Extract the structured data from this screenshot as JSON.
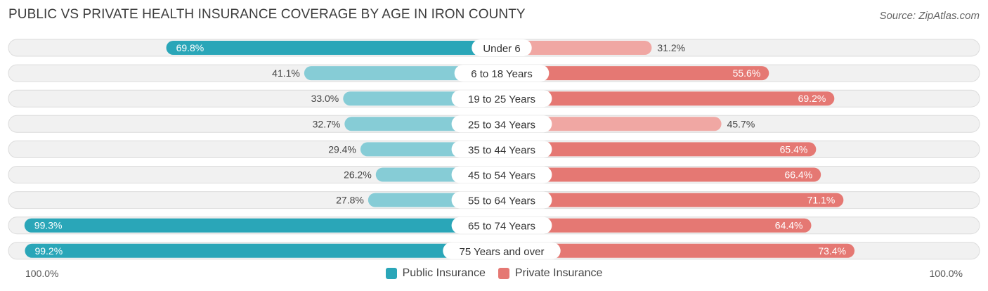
{
  "title": "PUBLIC VS PRIVATE HEALTH INSURANCE COVERAGE BY AGE IN IRON COUNTY",
  "source": "Source: ZipAtlas.com",
  "axis": {
    "left_label": "100.0%",
    "right_label": "100.0%"
  },
  "legend": {
    "public": "Public Insurance",
    "private": "Private Insurance"
  },
  "colors": {
    "public_strong": "#2aa6b8",
    "public_light": "#86ccd6",
    "private_strong": "#e57873",
    "private_light": "#f0a7a3",
    "track": "#f1f1f1",
    "track_border": "#dcdcdc"
  },
  "chart_data": {
    "type": "bar",
    "orientation": "horizontal-diverging",
    "title": "PUBLIC VS PRIVATE HEALTH INSURANCE COVERAGE BY AGE IN IRON COUNTY",
    "categories": [
      "Under 6",
      "6 to 18 Years",
      "19 to 25 Years",
      "25 to 34 Years",
      "35 to 44 Years",
      "45 to 54 Years",
      "55 to 64 Years",
      "65 to 74 Years",
      "75 Years and over"
    ],
    "series": [
      {
        "name": "Public Insurance",
        "values": [
          69.8,
          41.1,
          33.0,
          32.7,
          29.4,
          26.2,
          27.8,
          99.3,
          99.2
        ]
      },
      {
        "name": "Private Insurance",
        "values": [
          31.2,
          55.6,
          69.2,
          45.7,
          65.4,
          66.4,
          71.1,
          64.4,
          73.4
        ]
      }
    ],
    "labels": {
      "public": [
        "69.8%",
        "41.1%",
        "33.0%",
        "32.7%",
        "29.4%",
        "26.2%",
        "27.8%",
        "99.3%",
        "99.2%"
      ],
      "private": [
        "31.2%",
        "55.6%",
        "69.2%",
        "45.7%",
        "65.4%",
        "66.4%",
        "71.1%",
        "64.4%",
        "73.4%"
      ]
    },
    "xlim": [
      0,
      100
    ],
    "xlabel": "",
    "ylabel": ""
  }
}
